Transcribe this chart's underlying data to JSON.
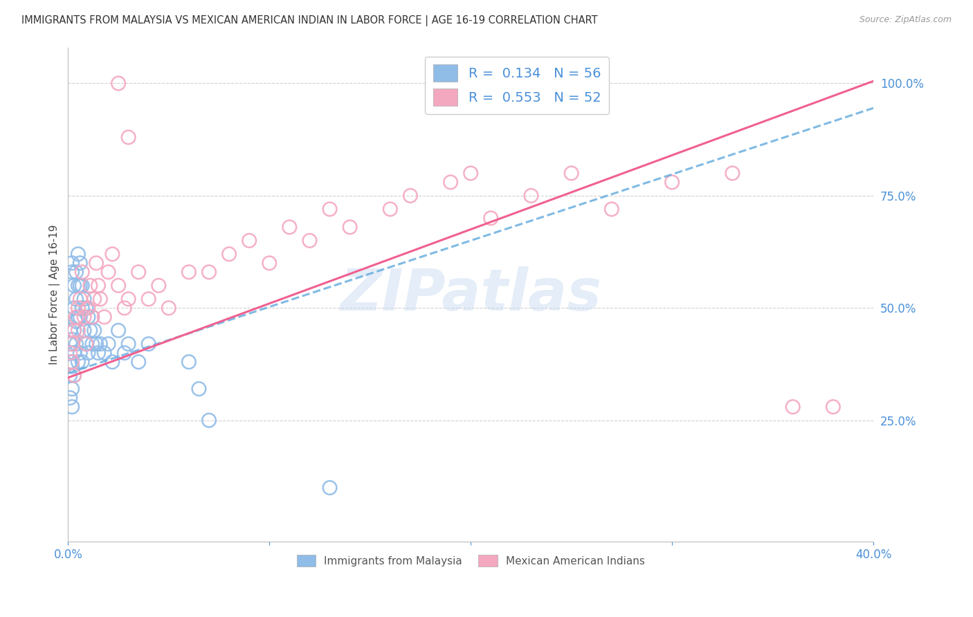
{
  "title": "IMMIGRANTS FROM MALAYSIA VS MEXICAN AMERICAN INDIAN IN LABOR FORCE | AGE 16-19 CORRELATION CHART",
  "source": "Source: ZipAtlas.com",
  "ylabel": "In Labor Force | Age 16-19",
  "xlim": [
    0.0,
    0.4
  ],
  "ylim": [
    -0.02,
    1.08
  ],
  "blue_color": "#90bce8",
  "pink_color": "#f4a8c0",
  "blue_line_color": "#6aaee0",
  "pink_line_color": "#f06090",
  "watermark": "ZIPatlas",
  "legend_r1": "R =  0.134",
  "legend_n1": "N = 56",
  "legend_r2": "R =  0.553",
  "legend_n2": "N = 52",
  "label1": "Immigrants from Malaysia",
  "label2": "Mexican American Indians",
  "blue_line_x0": 0.0,
  "blue_line_y0": 0.355,
  "blue_line_x1": 0.4,
  "blue_line_y1": 0.945,
  "pink_line_x0": 0.0,
  "pink_line_y0": 0.345,
  "pink_line_x1": 0.4,
  "pink_line_y1": 1.005,
  "grid_color": "#d0d0d0",
  "background_color": "#ffffff",
  "title_fontsize": 10.5,
  "blue_x": [
    0.001,
    0.001,
    0.001,
    0.001,
    0.001,
    0.002,
    0.002,
    0.002,
    0.002,
    0.002,
    0.002,
    0.003,
    0.003,
    0.003,
    0.003,
    0.003,
    0.004,
    0.004,
    0.004,
    0.004,
    0.005,
    0.005,
    0.005,
    0.005,
    0.006,
    0.006,
    0.006,
    0.006,
    0.007,
    0.007,
    0.007,
    0.008,
    0.008,
    0.009,
    0.009,
    0.01,
    0.01,
    0.011,
    0.012,
    0.012,
    0.013,
    0.014,
    0.015,
    0.016,
    0.018,
    0.02,
    0.022,
    0.025,
    0.028,
    0.03,
    0.035,
    0.04,
    0.06,
    0.065,
    0.07,
    0.13
  ],
  "blue_y": [
    0.42,
    0.38,
    0.35,
    0.3,
    0.45,
    0.6,
    0.58,
    0.43,
    0.37,
    0.32,
    0.28,
    0.55,
    0.5,
    0.45,
    0.4,
    0.35,
    0.58,
    0.52,
    0.47,
    0.42,
    0.62,
    0.55,
    0.48,
    0.38,
    0.6,
    0.55,
    0.48,
    0.4,
    0.55,
    0.5,
    0.38,
    0.52,
    0.45,
    0.5,
    0.42,
    0.48,
    0.4,
    0.45,
    0.48,
    0.42,
    0.45,
    0.42,
    0.4,
    0.42,
    0.4,
    0.42,
    0.38,
    0.45,
    0.4,
    0.42,
    0.38,
    0.42,
    0.38,
    0.32,
    0.25,
    0.1
  ],
  "pink_x": [
    0.001,
    0.002,
    0.002,
    0.003,
    0.003,
    0.004,
    0.005,
    0.005,
    0.006,
    0.007,
    0.008,
    0.009,
    0.01,
    0.011,
    0.012,
    0.013,
    0.014,
    0.015,
    0.016,
    0.018,
    0.02,
    0.022,
    0.025,
    0.028,
    0.03,
    0.035,
    0.04,
    0.045,
    0.05,
    0.06,
    0.07,
    0.08,
    0.09,
    0.1,
    0.11,
    0.12,
    0.13,
    0.14,
    0.16,
    0.17,
    0.19,
    0.2,
    0.21,
    0.23,
    0.25,
    0.27,
    0.3,
    0.33,
    0.36,
    0.38,
    0.025,
    0.03
  ],
  "pink_y": [
    0.4,
    0.42,
    0.38,
    0.45,
    0.35,
    0.48,
    0.45,
    0.5,
    0.52,
    0.58,
    0.48,
    0.42,
    0.5,
    0.55,
    0.48,
    0.52,
    0.6,
    0.55,
    0.52,
    0.48,
    0.58,
    0.62,
    0.55,
    0.5,
    0.52,
    0.58,
    0.52,
    0.55,
    0.5,
    0.58,
    0.58,
    0.62,
    0.65,
    0.6,
    0.68,
    0.65,
    0.72,
    0.68,
    0.72,
    0.75,
    0.78,
    0.8,
    0.7,
    0.75,
    0.8,
    0.72,
    0.78,
    0.8,
    0.28,
    0.28,
    1.0,
    0.88
  ]
}
